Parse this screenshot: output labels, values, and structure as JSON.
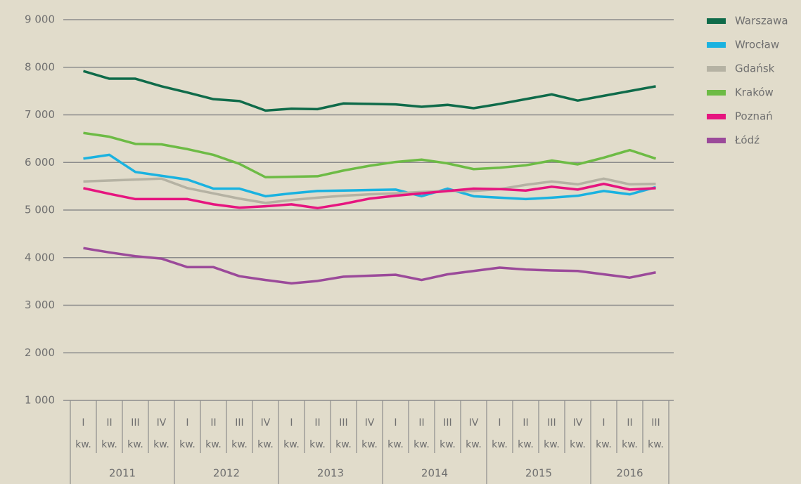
{
  "chart_data": {
    "type": "line",
    "categories": [
      "I",
      "II",
      "III",
      "IV",
      "I",
      "II",
      "III",
      "IV",
      "I",
      "II",
      "III",
      "IV",
      "I",
      "II",
      "III",
      "IV",
      "I",
      "II",
      "III",
      "IV",
      "I",
      "II",
      "III"
    ],
    "category_suffix": "kw.",
    "years": [
      "2011",
      "2012",
      "2013",
      "2014",
      "2015",
      "2016"
    ],
    "ylim": [
      1000,
      9000
    ],
    "yticks": [
      {
        "value": 1000,
        "label": "1 000"
      },
      {
        "value": 2000,
        "label": "2 000"
      },
      {
        "value": 3000,
        "label": "3 000"
      },
      {
        "value": 4000,
        "label": "4 000"
      },
      {
        "value": 5000,
        "label": "5 000"
      },
      {
        "value": 6000,
        "label": "6 000"
      },
      {
        "value": 7000,
        "label": "7 000"
      },
      {
        "value": 8000,
        "label": "8 000"
      },
      {
        "value": 9000,
        "label": "9 000"
      }
    ],
    "grid": true,
    "legend": "right",
    "series": [
      {
        "name": "Warszawa",
        "color": "#0f6b4a",
        "values": [
          7920,
          7760,
          7760,
          7600,
          7470,
          7330,
          7290,
          7090,
          7130,
          7120,
          7240,
          7230,
          7220,
          7170,
          7210,
          7140,
          7230,
          7330,
          7430,
          7300,
          7400,
          7500,
          7600
        ]
      },
      {
        "name": "Wrocław",
        "color": "#1ab2e0",
        "values": [
          6080,
          6160,
          5800,
          5720,
          5640,
          5450,
          5450,
          5290,
          5350,
          5400,
          5410,
          5420,
          5430,
          5290,
          5450,
          5290,
          5260,
          5230,
          5260,
          5300,
          5400,
          5330,
          5480
        ]
      },
      {
        "name": "Gdańsk",
        "color": "#b5b2a3",
        "values": [
          5600,
          5620,
          5640,
          5660,
          5460,
          5350,
          5240,
          5150,
          5210,
          5260,
          5300,
          5330,
          5350,
          5380,
          5400,
          5400,
          5440,
          5530,
          5600,
          5540,
          5660,
          5540,
          5550
        ]
      },
      {
        "name": "Kraków",
        "color": "#6dbb45",
        "values": [
          6620,
          6540,
          6390,
          6380,
          6280,
          6160,
          5970,
          5690,
          5700,
          5710,
          5830,
          5930,
          6010,
          6060,
          5980,
          5860,
          5890,
          5940,
          6040,
          5960,
          6100,
          6260,
          6080
        ]
      },
      {
        "name": "Poznań",
        "color": "#e6157f",
        "values": [
          5460,
          5340,
          5230,
          5230,
          5230,
          5120,
          5050,
          5080,
          5120,
          5040,
          5130,
          5240,
          5300,
          5350,
          5400,
          5450,
          5440,
          5410,
          5490,
          5430,
          5550,
          5430,
          5460
        ]
      },
      {
        "name": "Łódź",
        "color": "#9b4a9a",
        "values": [
          4200,
          4110,
          4030,
          3980,
          3800,
          3800,
          3610,
          3530,
          3460,
          3510,
          3600,
          3620,
          3640,
          3530,
          3650,
          3720,
          3790,
          3750,
          3730,
          3720,
          3650,
          3580,
          3690
        ]
      }
    ]
  }
}
